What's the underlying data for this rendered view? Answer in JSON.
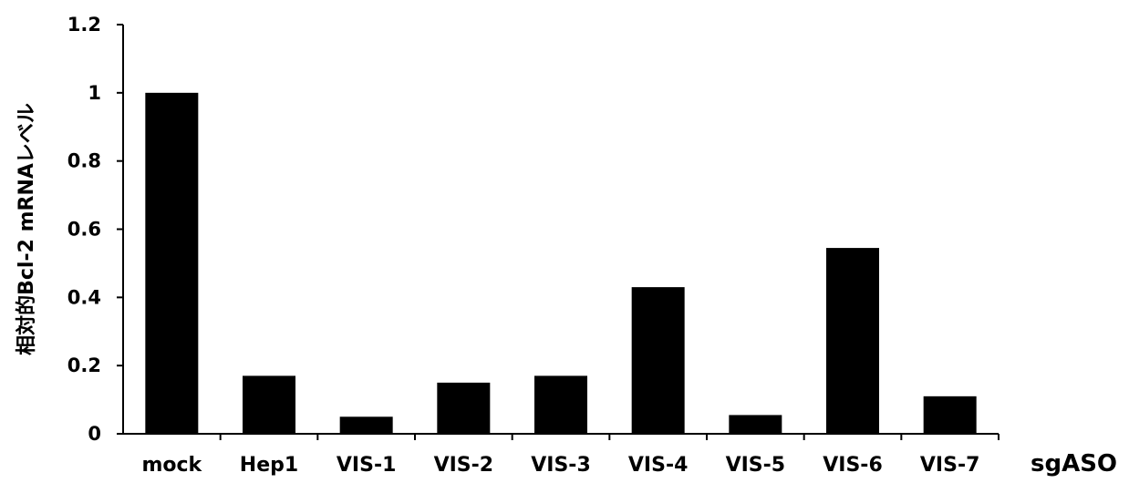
{
  "chart_data": {
    "type": "bar",
    "categories": [
      "mock",
      "Hep1",
      "VIS-1",
      "VIS-2",
      "VIS-3",
      "VIS-4",
      "VIS-5",
      "VIS-6",
      "VIS-7"
    ],
    "values": [
      1.0,
      0.17,
      0.05,
      0.15,
      0.17,
      0.43,
      0.055,
      0.545,
      0.11
    ],
    "ylabel": "相対的Bcl-2 mRNAレベル",
    "xlabel": "sgASO",
    "ylim": [
      0,
      1.2
    ],
    "yticks": [
      0,
      0.2,
      0.4,
      0.6,
      0.8,
      1,
      1.2
    ],
    "ytick_labels": [
      "0",
      "0.2",
      "0.4",
      "0.6",
      "0.8",
      "1",
      "1.2"
    ],
    "bar_color": "#000000",
    "grid": false,
    "legend": "none"
  }
}
